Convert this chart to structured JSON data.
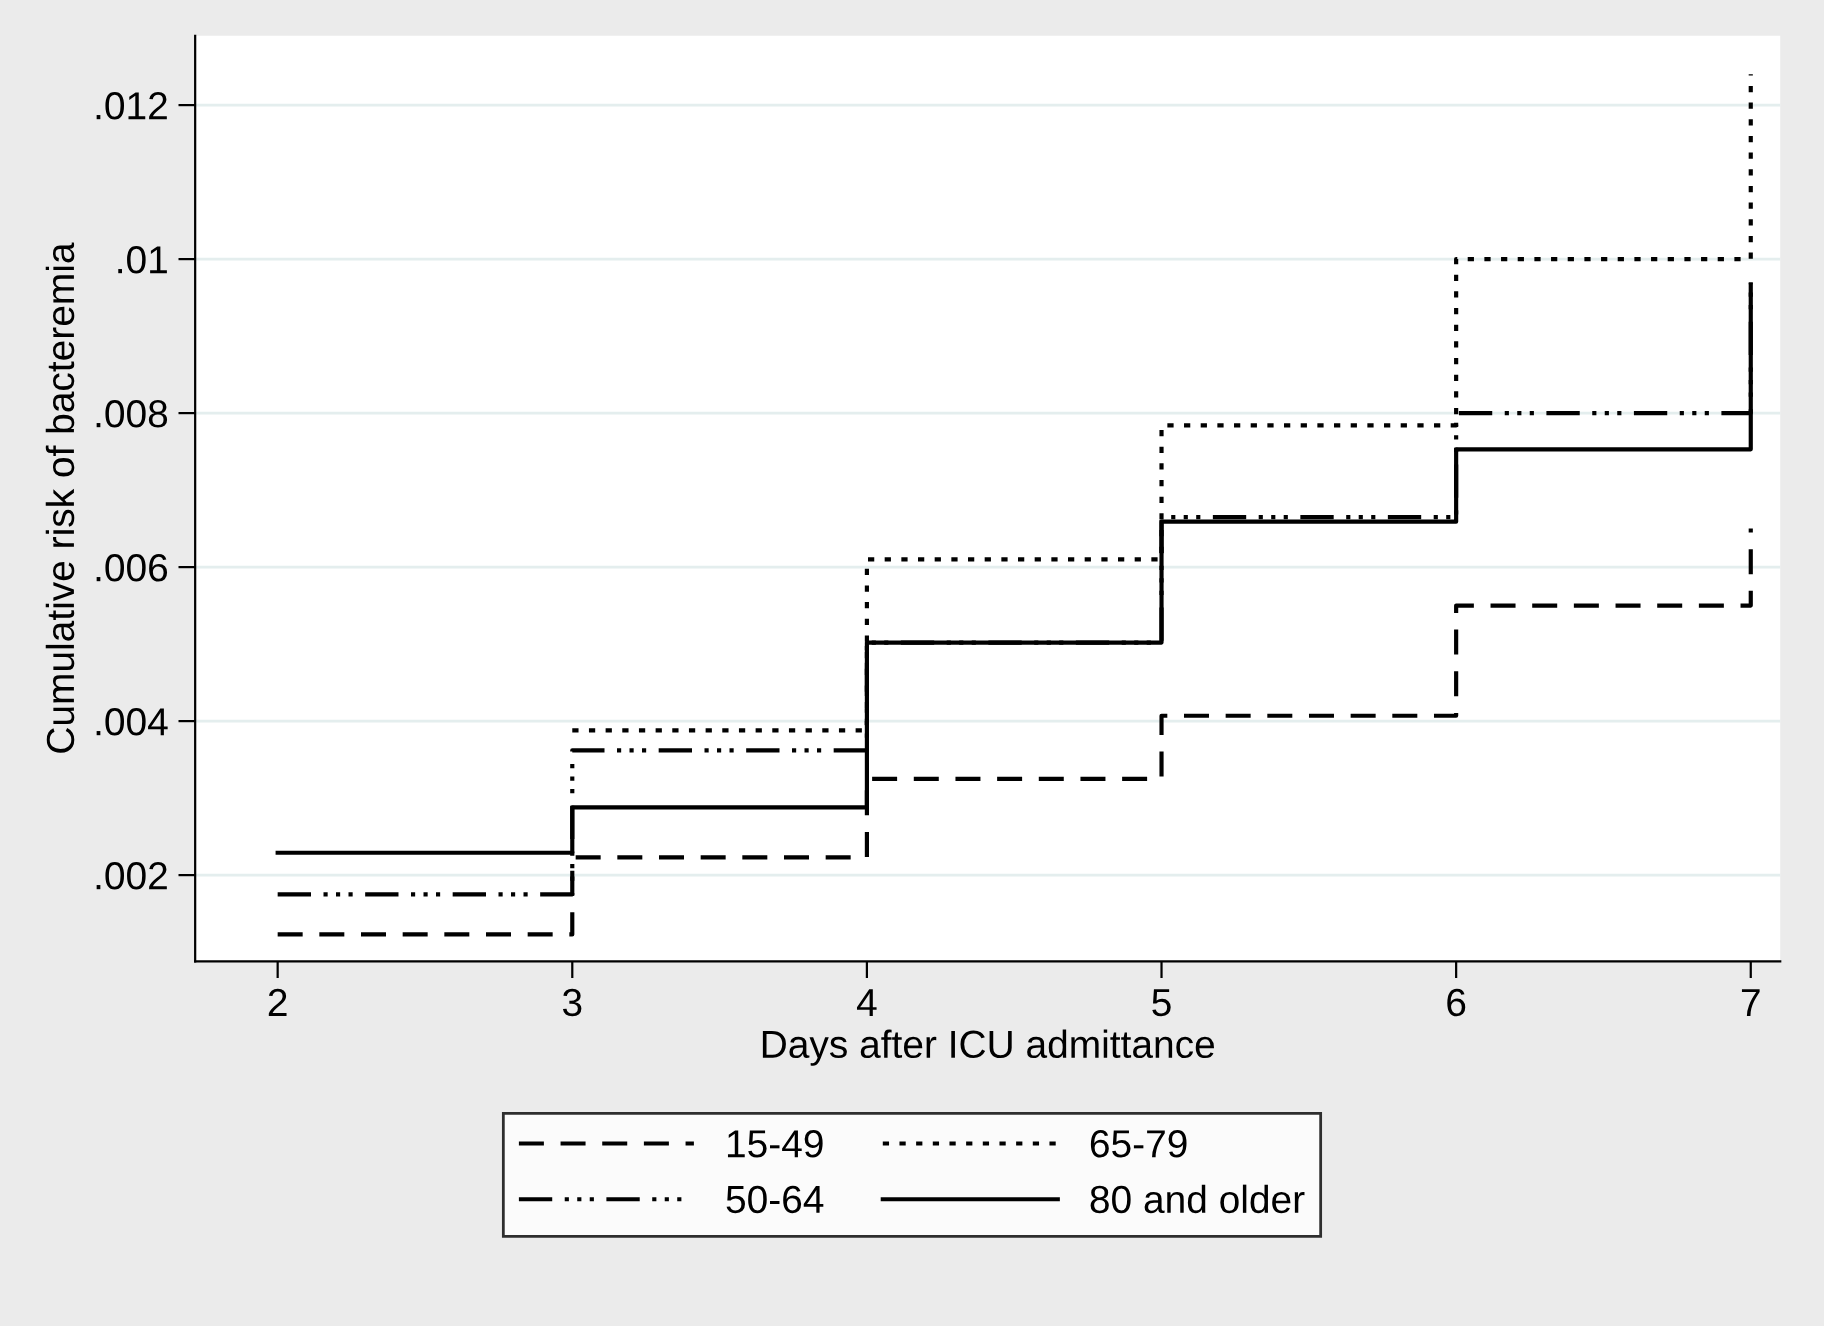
{
  "chart_data": {
    "type": "step",
    "xlabel": "Days after ICU admittance",
    "ylabel": "Cumulative risk of bacteremia",
    "x": [
      2,
      3,
      4,
      5,
      6,
      7
    ],
    "series": [
      {
        "name": "15-49",
        "color": "#000000",
        "line_style": "dashed",
        "values": [
          0.00123,
          0.00223,
          0.00325,
          0.00407,
          0.0055,
          0.0065
        ]
      },
      {
        "name": "50-64",
        "color": "#000000",
        "line_style": "dashdot",
        "values": [
          0.00175,
          0.00362,
          0.00502,
          0.00665,
          0.008,
          0.0097
        ]
      },
      {
        "name": "65-79",
        "color": "#000000",
        "line_style": "dotted",
        "values": [
          null,
          0.00388,
          0.0061,
          0.00784,
          0.01,
          0.0124
        ]
      },
      {
        "name": "80 and older",
        "color": "#000000",
        "line_style": "solid",
        "values": [
          0.00229,
          0.00288,
          0.00502,
          0.00659,
          0.00753,
          0.00966
        ]
      }
    ],
    "xlim": [
      1.72,
      7.1
    ],
    "ylim": [
      0.00088,
      0.0129
    ],
    "xticks": [
      2,
      3,
      4,
      5,
      6,
      7
    ],
    "yticks": [
      {
        "value": 0.002,
        "label": ".002"
      },
      {
        "value": 0.004,
        "label": ".004"
      },
      {
        "value": 0.006,
        "label": ".006"
      },
      {
        "value": 0.008,
        "label": ".008"
      },
      {
        "value": 0.01,
        "label": ".01"
      },
      {
        "value": 0.012,
        "label": ".012"
      }
    ],
    "grid": "y",
    "legend": "bottom"
  }
}
